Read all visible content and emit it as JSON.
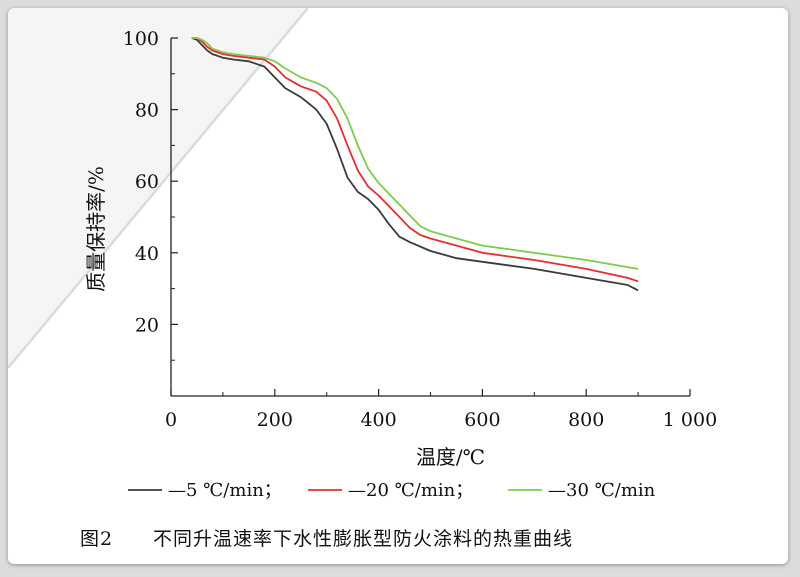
{
  "chart_data": {
    "type": "line",
    "xlabel": "温度/℃",
    "ylabel": "质量保持率/%",
    "xlim": [
      0,
      1000
    ],
    "ylim": [
      0,
      100
    ],
    "x_ticks": [
      "0",
      "200",
      "400",
      "600",
      "800",
      "1 000"
    ],
    "y_ticks": [
      "20",
      "40",
      "60",
      "80",
      "100"
    ],
    "y_tick_values": [
      20,
      40,
      60,
      80,
      100
    ],
    "x_tick_values": [
      0,
      200,
      400,
      600,
      800,
      1000
    ],
    "grid": false,
    "legend_position": "bottom",
    "series": [
      {
        "name": "—5 ℃/min",
        "color": "#3a3a3a",
        "x": [
          40,
          50,
          60,
          70,
          80,
          100,
          120,
          150,
          180,
          200,
          220,
          250,
          280,
          300,
          320,
          340,
          360,
          380,
          400,
          420,
          440,
          460,
          500,
          550,
          600,
          700,
          800,
          880,
          900
        ],
        "y": [
          100,
          99.5,
          98,
          96.5,
          95.5,
          94.5,
          94,
          93.5,
          92,
          89,
          86,
          83.5,
          80,
          76,
          69,
          61,
          57,
          55,
          52,
          48,
          44.5,
          43,
          40.5,
          38.5,
          37.5,
          35.5,
          33,
          31,
          29.5
        ]
      },
      {
        "name": "—20 ℃/min",
        "color": "#e03030",
        "x": [
          40,
          50,
          60,
          70,
          80,
          100,
          120,
          150,
          180,
          200,
          220,
          250,
          280,
          300,
          320,
          340,
          360,
          380,
          400,
          420,
          440,
          460,
          480,
          500,
          550,
          600,
          700,
          800,
          880,
          900
        ],
        "y": [
          100,
          100,
          99,
          97.5,
          96.5,
          95.5,
          95,
          94.5,
          94,
          92,
          89,
          86.5,
          85,
          82.5,
          77.5,
          70,
          63,
          58.5,
          56,
          53,
          50,
          47,
          45,
          44,
          42,
          40,
          38,
          35.5,
          33,
          32
        ]
      },
      {
        "name": "—30 ℃/min",
        "color": "#7fcc4a",
        "x": [
          40,
          50,
          60,
          70,
          80,
          100,
          120,
          150,
          180,
          200,
          220,
          250,
          280,
          300,
          320,
          340,
          360,
          380,
          400,
          420,
          440,
          460,
          480,
          500,
          550,
          600,
          700,
          800,
          880,
          900
        ],
        "y": [
          100,
          100,
          99.5,
          98.5,
          97,
          96,
          95.5,
          95,
          94.5,
          93.5,
          91.5,
          89,
          87.5,
          86,
          83,
          77.5,
          70,
          63.5,
          59.5,
          56.5,
          53.5,
          50.5,
          47.5,
          46,
          44,
          42,
          40,
          38,
          36,
          35.5
        ]
      }
    ]
  },
  "caption": {
    "label": "图2",
    "text": "不同升温速率下水性膨胀型防火涂料的热重曲线"
  }
}
